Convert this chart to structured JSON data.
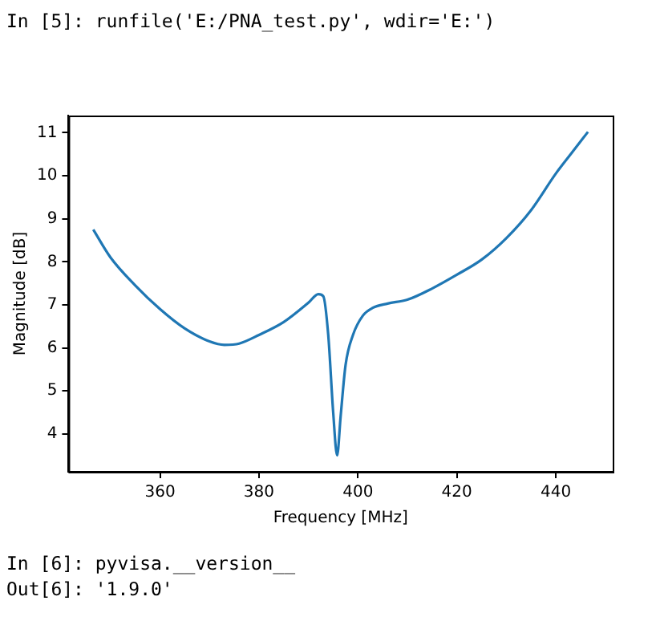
{
  "chart_data": {
    "type": "line",
    "xlabel": "Frequency [MHz]",
    "ylabel": "Magnitude [dB]",
    "annotations": [
      "In [5]: runfile('E:/PNA_test.py', wdir='E:')",
      "In [6]: pyvisa.__version__",
      "Out[6]: '1.9.0'"
    ],
    "series": [
      {
        "color": "#1f77b4",
        "x": [
          346.5,
          350,
          355,
          360,
          365,
          370,
          373,
          376,
          380,
          385,
          390,
          392,
          393,
          394,
          395,
          395.8,
          396.5,
          397.5,
          399,
          401,
          403,
          406,
          410,
          415,
          420,
          425,
          430,
          435,
          440,
          443,
          446.5
        ],
        "values": [
          8.75,
          8.1,
          7.45,
          6.9,
          6.45,
          6.15,
          6.07,
          6.1,
          6.3,
          6.6,
          7.05,
          7.25,
          7.2,
          6.3,
          4.5,
          3.5,
          4.4,
          5.6,
          6.3,
          6.75,
          6.93,
          7.03,
          7.12,
          7.38,
          7.7,
          8.05,
          8.55,
          9.2,
          10.05,
          10.5,
          11.02
        ]
      }
    ],
    "xlim": [
      341.5,
      451.5
    ],
    "xticks": [
      360,
      380,
      400,
      420,
      440
    ],
    "ylim": [
      3.12,
      11.4
    ],
    "yticks": [
      4,
      5,
      6,
      7,
      8,
      9,
      10,
      11
    ],
    "grid": false,
    "legend": false,
    "marker": "none",
    "line_style": "solid"
  }
}
